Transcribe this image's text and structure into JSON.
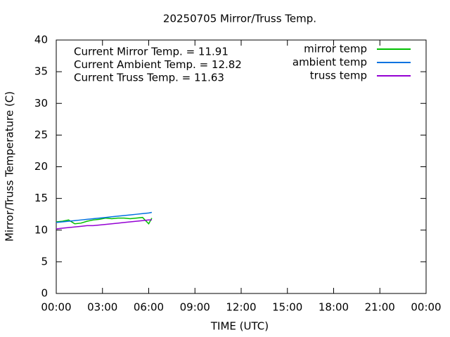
{
  "chart_data": {
    "type": "line",
    "title": "20250705 Mirror/Truss Temp.",
    "xlabel": "TIME (UTC)",
    "ylabel": "Mirror/Truss Temperature (C)",
    "annotations": [
      "Current Mirror Temp. = 11.91",
      "Current Ambient Temp. = 12.82",
      "Current Truss Temp. = 11.63"
    ],
    "x": [
      0,
      0.4,
      0.8,
      1.2,
      1.6,
      2.0,
      2.4,
      2.8,
      3.2,
      3.6,
      4.0,
      4.4,
      4.8,
      5.2,
      5.6,
      6.0,
      6.2
    ],
    "series": [
      {
        "name": "mirror temp",
        "color": "#00c000",
        "values": [
          11.3,
          11.4,
          11.6,
          11.0,
          11.1,
          11.4,
          11.6,
          11.7,
          11.9,
          11.8,
          11.9,
          11.9,
          11.8,
          11.9,
          12.0,
          11.0,
          11.9
        ]
      },
      {
        "name": "ambient temp",
        "color": "#0072e0",
        "values": [
          11.2,
          11.3,
          11.4,
          11.5,
          11.6,
          11.7,
          11.8,
          11.9,
          12.0,
          12.1,
          12.2,
          12.3,
          12.4,
          12.5,
          12.6,
          12.7,
          12.8
        ]
      },
      {
        "name": "truss temp",
        "color": "#9400d3",
        "values": [
          10.2,
          10.3,
          10.4,
          10.5,
          10.6,
          10.7,
          10.7,
          10.8,
          10.9,
          11.0,
          11.1,
          11.2,
          11.3,
          11.4,
          11.5,
          11.6,
          11.6
        ]
      }
    ],
    "xlim": [
      0,
      24
    ],
    "xticks": [
      {
        "value": 0,
        "label": "00:00"
      },
      {
        "value": 3,
        "label": "03:00"
      },
      {
        "value": 6,
        "label": "06:00"
      },
      {
        "value": 9,
        "label": "09:00"
      },
      {
        "value": 12,
        "label": "12:00"
      },
      {
        "value": 15,
        "label": "15:00"
      },
      {
        "value": 18,
        "label": "18:00"
      },
      {
        "value": 21,
        "label": "21:00"
      },
      {
        "value": 24,
        "label": "00:00"
      }
    ],
    "ylim": [
      0,
      40
    ],
    "yticks": [
      0,
      5,
      10,
      15,
      20,
      25,
      30,
      35,
      40
    ],
    "legend": "top-right",
    "grid": false
  }
}
